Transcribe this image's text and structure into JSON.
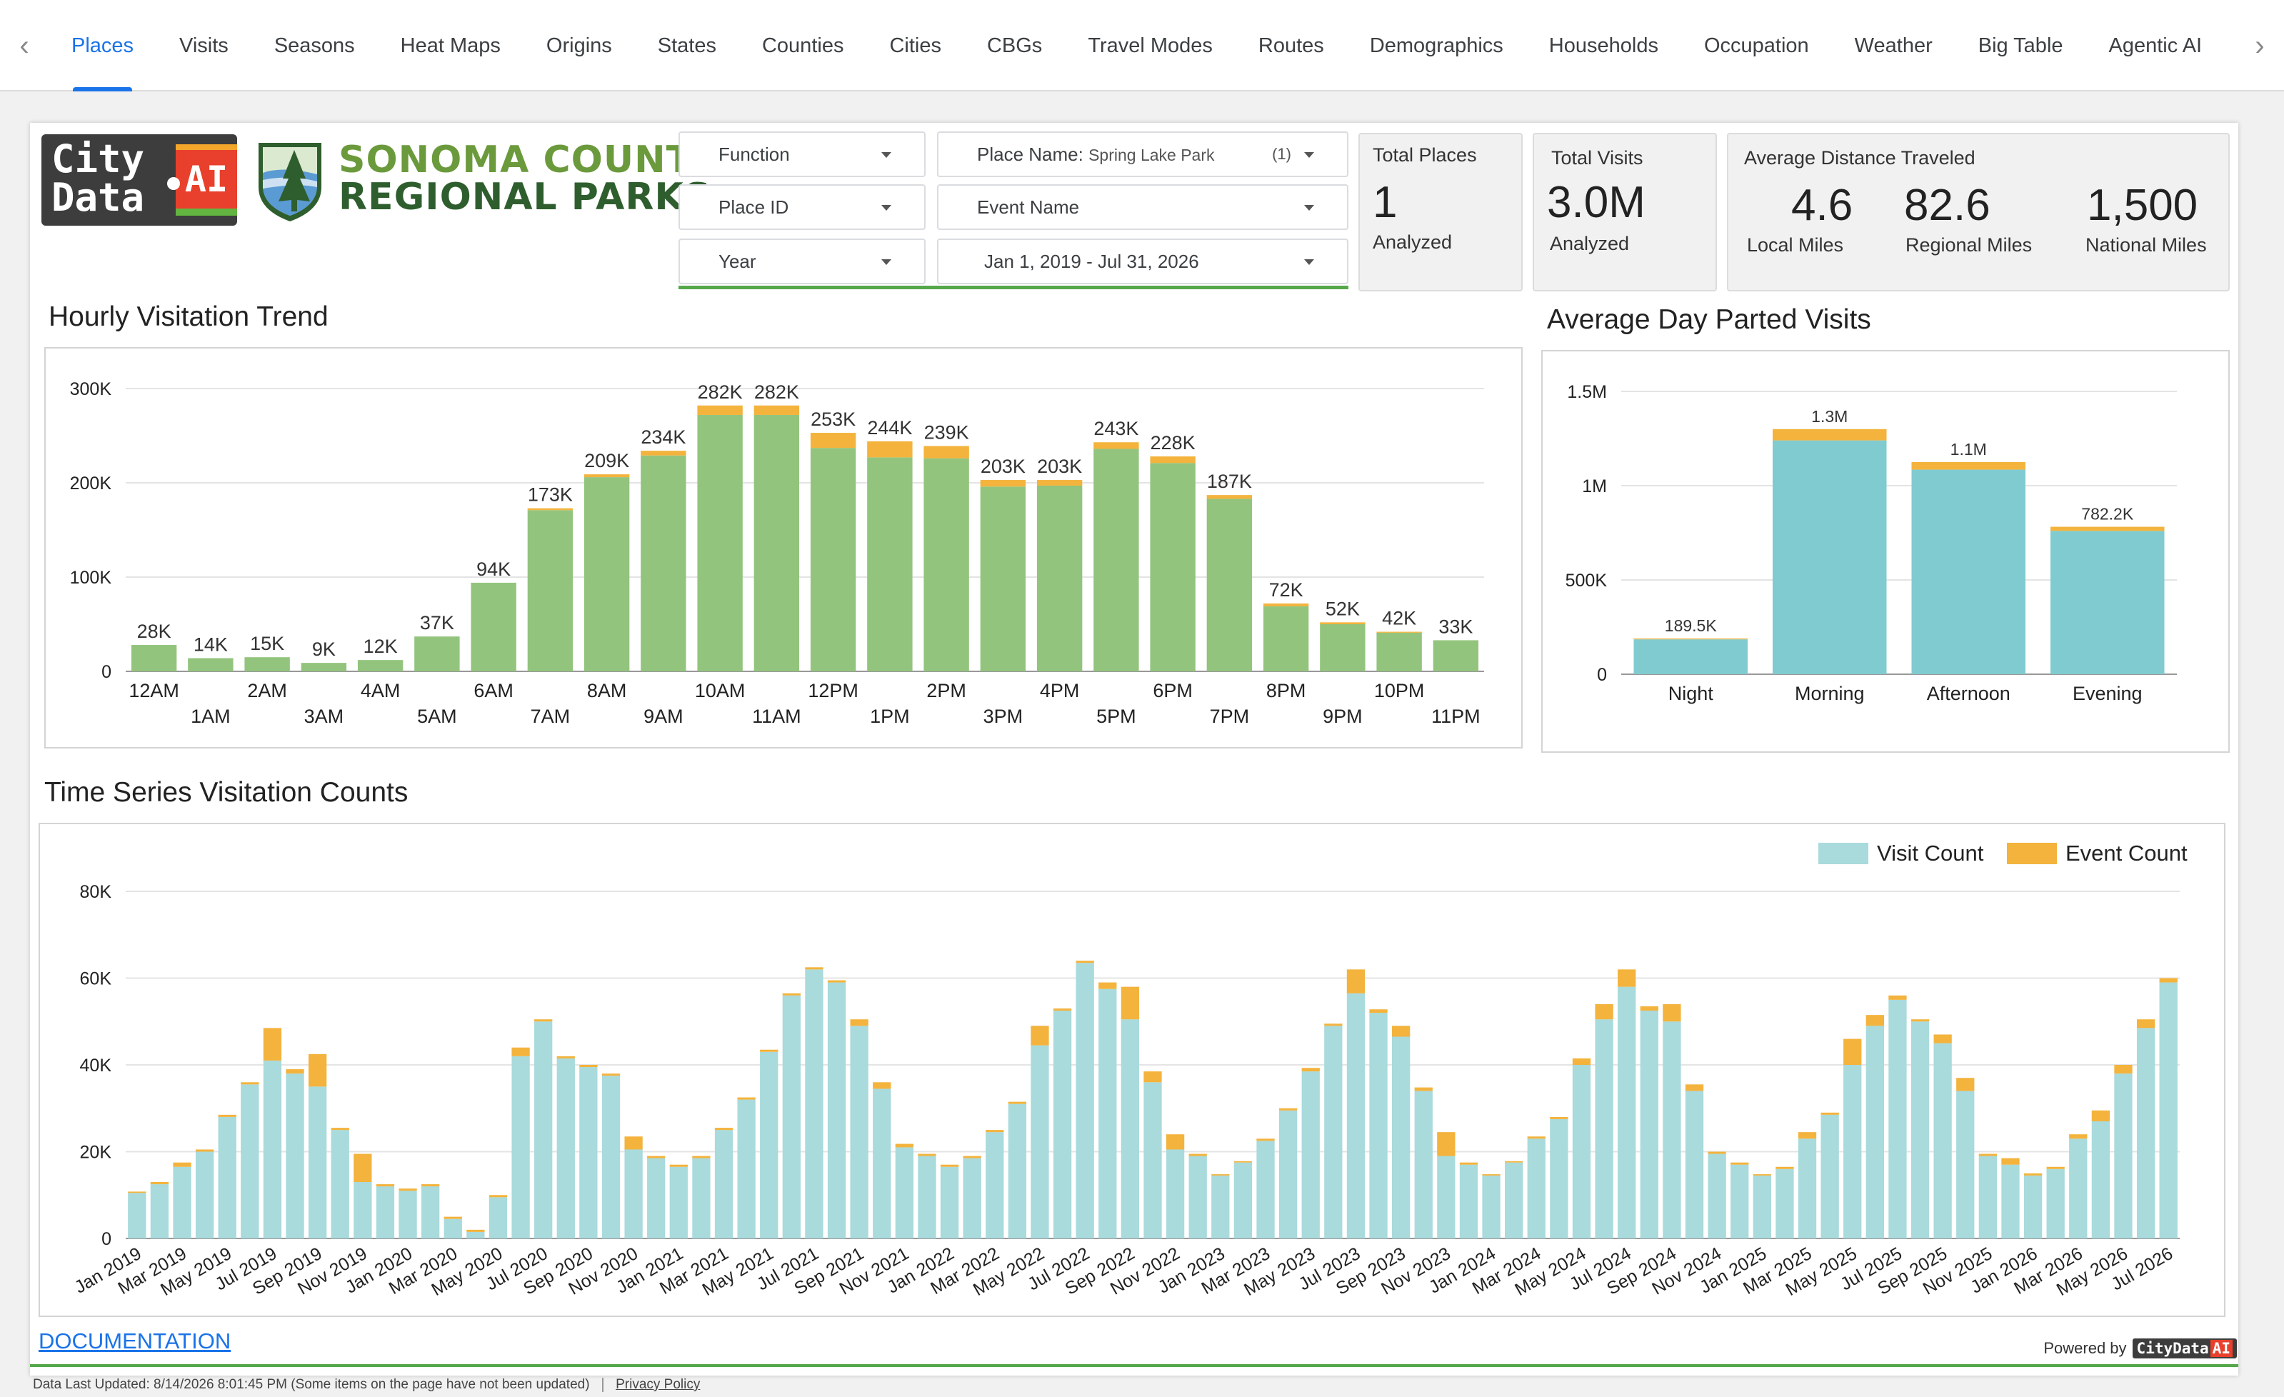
{
  "tabs": [
    "Places",
    "Visits",
    "Seasons",
    "Heat Maps",
    "Origins",
    "States",
    "Counties",
    "Cities",
    "CBGs",
    "Travel Modes",
    "Routes",
    "Demographics",
    "Households",
    "Occupation",
    "Weather",
    "Big Table",
    "Agentic AI"
  ],
  "active_tab": "Places",
  "icons": {
    "prev": "chevron-left-icon",
    "next": "chevron-right-icon"
  },
  "logos": {
    "citydata_line1": "City",
    "citydata_line2": "Data",
    "citydata_ai": "AI",
    "parks_line1": "SONOMA COUNTY",
    "parks_line2": "REGIONAL PARKS"
  },
  "filters": {
    "function": "Function",
    "place_name_label": "Place Name:",
    "place_name_value": "Spring Lake Park",
    "place_name_count": "(1)",
    "place_id": "Place ID",
    "event_name": "Event Name",
    "year": "Year",
    "date_range": "Jan 1, 2019 - Jul 31, 2026"
  },
  "kpis": {
    "total_places": {
      "title": "Total Places",
      "value": "1",
      "sub": "Analyzed"
    },
    "total_visits": {
      "title": "Total Visits",
      "value": "3.0M",
      "sub": "Analyzed"
    },
    "distance": {
      "title": "Average Distance Traveled",
      "local_value": "4.6",
      "local_label": "Local Miles",
      "regional_value": "82.6",
      "regional_label": "Regional Miles",
      "national_value": "1,500",
      "national_label": "National Miles"
    }
  },
  "colors": {
    "green": "#93c47d",
    "orange": "#f3b33d",
    "teal": "#80cbd0",
    "lightteal": "#a9dadc",
    "accent": "#1a73e8"
  },
  "chart_data": [
    {
      "type": "bar",
      "title": "Hourly Visitation Trend",
      "stacked": true,
      "categories": [
        "12AM",
        "1AM",
        "2AM",
        "3AM",
        "4AM",
        "5AM",
        "6AM",
        "7AM",
        "8AM",
        "9AM",
        "10AM",
        "11AM",
        "12PM",
        "1PM",
        "2PM",
        "3PM",
        "4PM",
        "5PM",
        "6PM",
        "7PM",
        "8PM",
        "9PM",
        "10PM",
        "11PM"
      ],
      "series": [
        {
          "values": [
            28,
            14,
            15,
            9,
            12,
            37,
            94,
            171,
            206,
            229,
            272,
            272,
            237,
            227,
            226,
            196,
            197,
            236,
            221,
            183,
            69,
            50,
            41,
            33
          ]
        },
        {
          "values": [
            0,
            0,
            0,
            0,
            0,
            0,
            0,
            2,
            3,
            5,
            10,
            10,
            16,
            17,
            13,
            7,
            6,
            7,
            7,
            4,
            3,
            2,
            1,
            0
          ]
        }
      ],
      "labels": [
        "28K",
        "14K",
        "15K",
        "9K",
        "12K",
        "37K",
        "94K",
        "173K",
        "209K",
        "234K",
        "282K",
        "282K",
        "253K",
        "244K",
        "239K",
        "203K",
        "203K",
        "243K",
        "228K",
        "187K",
        "72K",
        "52K",
        "42K",
        "33K"
      ],
      "yticks": [
        "0",
        "100K",
        "200K",
        "300K"
      ],
      "ylim": [
        0,
        300
      ],
      "grid": true
    },
    {
      "type": "bar",
      "title": "Average Day Parted Visits",
      "stacked": true,
      "categories": [
        "Night",
        "Morning",
        "Afternoon",
        "Evening"
      ],
      "series": [
        {
          "values": [
            185,
            1240,
            1085,
            760
          ]
        },
        {
          "values": [
            4.5,
            60,
            40,
            22
          ]
        }
      ],
      "labels": [
        "189.5K",
        "1.3M",
        "1.1M",
        "782.2K"
      ],
      "yticks": [
        "0",
        "500K",
        "1M",
        "1.5M"
      ],
      "ylim": [
        0,
        1500
      ],
      "grid": true
    },
    {
      "type": "bar",
      "title": "Time Series Visitation Counts",
      "stacked": true,
      "legend": "top-right",
      "x": [
        "Jan 2019",
        "Feb 2019",
        "Mar 2019",
        "Apr 2019",
        "May 2019",
        "Jun 2019",
        "Jul 2019",
        "Aug 2019",
        "Sep 2019",
        "Oct 2019",
        "Nov 2019",
        "Dec 2019",
        "Jan 2020",
        "Feb 2020",
        "Mar 2020",
        "Apr 2020",
        "May 2020",
        "Jun 2020",
        "Jul 2020",
        "Aug 2020",
        "Sep 2020",
        "Oct 2020",
        "Nov 2020",
        "Dec 2020",
        "Jan 2021",
        "Feb 2021",
        "Mar 2021",
        "Apr 2021",
        "May 2021",
        "Jun 2021",
        "Jul 2021",
        "Aug 2021",
        "Sep 2021",
        "Oct 2021",
        "Nov 2021",
        "Dec 2021",
        "Jan 2022",
        "Feb 2022",
        "Mar 2022",
        "Apr 2022",
        "May 2022",
        "Jun 2022",
        "Jul 2022",
        "Aug 2022",
        "Sep 2022",
        "Oct 2022",
        "Nov 2022",
        "Dec 2022",
        "Jan 2023",
        "Feb 2023",
        "Mar 2023",
        "Apr 2023",
        "May 2023",
        "Jun 2023",
        "Jul 2023",
        "Aug 2023",
        "Sep 2023",
        "Oct 2023",
        "Nov 2023",
        "Dec 2023",
        "Jan 2024",
        "Feb 2024",
        "Mar 2024",
        "Apr 2024",
        "May 2024",
        "Jun 2024",
        "Jul 2024",
        "Aug 2024",
        "Sep 2024",
        "Oct 2024",
        "Nov 2024",
        "Dec 2024",
        "Jan 2025",
        "Feb 2025",
        "Mar 2025",
        "Apr 2025",
        "May 2025",
        "Jun 2025",
        "Jul 2025",
        "Aug 2025",
        "Sep 2025",
        "Oct 2025",
        "Nov 2025",
        "Dec 2025",
        "Jan 2026",
        "Feb 2026",
        "Mar 2026",
        "Apr 2026",
        "May 2026",
        "Jun 2026",
        "Jul 2026"
      ],
      "xtick_labels": [
        "Jan 2019",
        "Mar 2019",
        "May 2019",
        "Jul 2019",
        "Sep 2019",
        "Nov 2019",
        "Jan 2020",
        "Mar 2020",
        "May 2020",
        "Jul 2020",
        "Sep 2020",
        "Nov 2020",
        "Jan 2021",
        "Mar 2021",
        "May 2021",
        "Jul 2021",
        "Sep 2021",
        "Nov 2021",
        "Jan 2022",
        "Mar 2022",
        "May 2022",
        "Jul 2022",
        "Sep 2022",
        "Nov 2022",
        "Jan 2023",
        "Mar 2023",
        "May 2023",
        "Jul 2023",
        "Sep 2023",
        "Nov 2023",
        "Jan 2024",
        "Mar 2024",
        "May 2024",
        "Jul 2024",
        "Sep 2024",
        "Nov 2024",
        "Jan 2025",
        "Mar 2025",
        "May 2025",
        "Jul 2025",
        "Sep 2025",
        "Nov 2025",
        "Jan 2026",
        "Mar 2026",
        "May 2026",
        "Jul 2026"
      ],
      "series": [
        {
          "name": "Visit Count",
          "values": [
            10.5,
            12.5,
            16.5,
            20,
            28,
            35.5,
            41,
            38,
            35,
            25,
            13,
            12,
            11,
            12,
            4.5,
            1.5,
            9.5,
            42,
            50,
            41.5,
            39.5,
            37.5,
            20.5,
            18.5,
            16.5,
            18.5,
            25,
            32,
            43,
            56,
            62,
            59,
            49,
            34.5,
            21,
            19,
            16.5,
            18.5,
            24.5,
            31,
            44.5,
            52.5,
            63.5,
            57.5,
            50.5,
            36,
            20.5,
            19,
            14.5,
            17.5,
            22.5,
            29.5,
            38.5,
            49,
            56.5,
            52,
            46.5,
            34,
            19,
            17,
            14.5,
            17.5,
            23,
            27.5,
            40,
            50.5,
            58,
            52.5,
            50,
            34,
            19.5,
            17,
            14.5,
            16,
            23,
            28.5,
            40,
            49,
            55,
            50,
            45,
            34,
            19,
            17,
            14.5,
            16,
            23,
            27,
            38,
            48.5,
            59
          ]
        },
        {
          "name": "Event Count",
          "values": [
            0.3,
            0.5,
            1,
            0.5,
            0.5,
            0.5,
            7.5,
            1,
            7.5,
            0.5,
            6.5,
            0.5,
            0.5,
            0.5,
            0.5,
            0.5,
            0.5,
            2,
            0.5,
            0.5,
            0.5,
            0.5,
            3,
            0.5,
            0.5,
            0.5,
            0.5,
            0.5,
            0.5,
            0.5,
            0.5,
            0.5,
            1.5,
            1.5,
            0.8,
            0.5,
            0.5,
            0.5,
            0.5,
            0.5,
            4.5,
            0.5,
            0.5,
            1.5,
            7.5,
            2.5,
            3.5,
            0.5,
            0.3,
            0.3,
            0.5,
            0.5,
            0.8,
            0.5,
            5.5,
            0.8,
            2.5,
            0.8,
            5.5,
            0.5,
            0.3,
            0.3,
            0.5,
            0.5,
            1.5,
            3.5,
            4,
            1,
            4,
            1.5,
            0.5,
            0.5,
            0.3,
            0.5,
            1.5,
            0.5,
            6,
            2.5,
            1,
            0.5,
            2,
            3,
            0.5,
            1.5,
            0.5,
            0.5,
            1,
            2.5,
            2,
            2,
            1
          ]
        }
      ],
      "yticks": [
        "0",
        "20K",
        "40K",
        "60K",
        "80K"
      ],
      "ylim": [
        0,
        80
      ],
      "grid": true
    }
  ],
  "footer": {
    "documentation": "DOCUMENTATION",
    "powered_by": "Powered by",
    "powered_logo": "CityData",
    "powered_logo_ai": "AI",
    "last_updated": "Data Last Updated: 8/14/2026 8:01:45 PM (Some items on the page have not been updated)",
    "privacy": "Privacy Policy"
  }
}
